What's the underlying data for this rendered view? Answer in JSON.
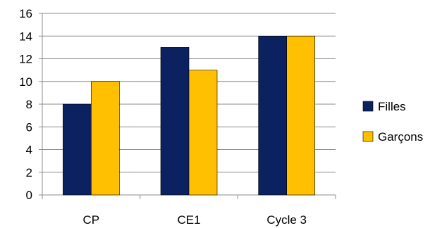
{
  "chart_data": {
    "type": "bar",
    "categories": [
      "CP",
      "CE1",
      "Cycle 3"
    ],
    "series": [
      {
        "name": "Filles",
        "values": [
          8,
          13,
          14
        ],
        "color": "#0b2160"
      },
      {
        "name": "Garçons",
        "values": [
          10,
          11,
          14
        ],
        "color": "#fec000"
      }
    ],
    "ylim": [
      0,
      16
    ],
    "yticks": [
      0,
      2,
      4,
      6,
      8,
      10,
      12,
      14,
      16
    ],
    "grid": true,
    "legend_position": "right",
    "title": "",
    "xlabel": "",
    "ylabel": ""
  }
}
